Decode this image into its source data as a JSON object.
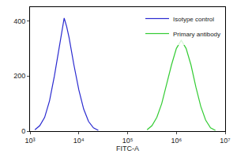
{
  "chart_data": {
    "type": "line",
    "x_label": "FITC-A",
    "log": "x",
    "xlim": [
      1000,
      10000000
    ],
    "xticks": [
      {
        "value": 1000,
        "label": "10³"
      },
      {
        "value": 10000,
        "label": "10⁴"
      },
      {
        "value": 100000,
        "label": "10⁵"
      },
      {
        "value": 1000000,
        "label": "10⁶"
      },
      {
        "value": 10000000,
        "label": "10⁷"
      }
    ],
    "ylim": [
      0,
      450
    ],
    "yticks": [
      0,
      200,
      400
    ],
    "grid": false,
    "legend": "upper right",
    "series": [
      {
        "name": "Isotype control",
        "color": "#2a2ad0",
        "x": [
          1259,
          1585,
          1995,
          2512,
          3162,
          3981,
          4467,
          5012,
          5623,
          6310,
          7943,
          10000,
          12589,
          15849,
          19953,
          25119
        ],
        "values": [
          5,
          20,
          50,
          110,
          200,
          300,
          360,
          410,
          380,
          340,
          240,
          150,
          80,
          35,
          12,
          3
        ]
      },
      {
        "name": "Primary antibody",
        "color": "#33cc33",
        "x": [
          251189,
          316228,
          398107,
          501187,
          630957,
          794328,
          1000000,
          1258925,
          1584893,
          1995262,
          2511886,
          3162278,
          3981072,
          5011872,
          6309573
        ],
        "values": [
          5,
          20,
          50,
          100,
          170,
          240,
          300,
          330,
          300,
          240,
          160,
          90,
          40,
          12,
          3
        ]
      }
    ]
  }
}
